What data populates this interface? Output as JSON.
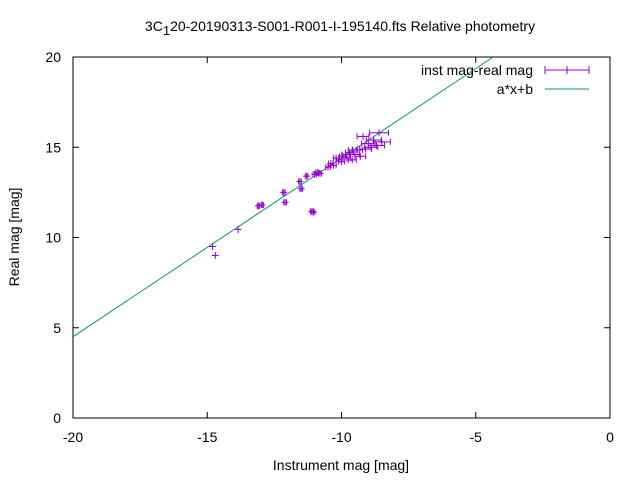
{
  "chart_data": {
    "type": "scatter",
    "title_main": "3C",
    "title_sub": "1",
    "title_rest": "20-20190313-S001-R001-I-195140.fts Relative photometry",
    "xlabel": "Instrument mag [mag]",
    "ylabel": "Real mag [mag]",
    "xlim": [
      -20,
      0
    ],
    "ylim": [
      0,
      20
    ],
    "xticks": [
      -20,
      -15,
      -10,
      -5,
      0
    ],
    "xtick_labels": [
      "-20",
      "-15",
      "-10",
      "-5",
      "0"
    ],
    "yticks": [
      0,
      5,
      10,
      15,
      20
    ],
    "ytick_labels": [
      "0",
      "5",
      "10",
      "15",
      "20"
    ],
    "grid": false,
    "legend_position": "top-right",
    "series": [
      {
        "name": "inst mag-real mag",
        "kind": "points-with-xerror",
        "color": "#9400d3",
        "points": [
          {
            "x": -14.8,
            "y": 9.5,
            "xerr": 0.02
          },
          {
            "x": -14.7,
            "y": 9.0,
            "xerr": 0.02
          },
          {
            "x": -13.85,
            "y": 10.45,
            "xerr": 0.03
          },
          {
            "x": -13.1,
            "y": 11.75,
            "xerr": 0.04
          },
          {
            "x": -12.95,
            "y": 11.8,
            "xerr": 0.04
          },
          {
            "x": -12.15,
            "y": 12.5,
            "xerr": 0.05
          },
          {
            "x": -12.1,
            "y": 11.95,
            "xerr": 0.05
          },
          {
            "x": -11.5,
            "y": 12.7,
            "xerr": 0.05
          },
          {
            "x": -11.55,
            "y": 13.1,
            "xerr": 0.05
          },
          {
            "x": -11.3,
            "y": 13.4,
            "xerr": 0.05
          },
          {
            "x": -11.1,
            "y": 11.45,
            "xerr": 0.06
          },
          {
            "x": -11.05,
            "y": 11.4,
            "xerr": 0.06
          },
          {
            "x": -11.0,
            "y": 13.5,
            "xerr": 0.06
          },
          {
            "x": -10.9,
            "y": 13.6,
            "xerr": 0.06
          },
          {
            "x": -10.8,
            "y": 13.55,
            "xerr": 0.06
          },
          {
            "x": -10.5,
            "y": 13.9,
            "xerr": 0.08
          },
          {
            "x": -10.4,
            "y": 14.1,
            "xerr": 0.08
          },
          {
            "x": -10.3,
            "y": 14.0,
            "xerr": 0.1
          },
          {
            "x": -10.1,
            "y": 14.3,
            "xerr": 0.1
          },
          {
            "x": -10.0,
            "y": 14.2,
            "xerr": 0.12
          },
          {
            "x": -9.95,
            "y": 14.5,
            "xerr": 0.12
          },
          {
            "x": -9.8,
            "y": 14.4,
            "xerr": 0.14
          },
          {
            "x": -9.7,
            "y": 14.7,
            "xerr": 0.15
          },
          {
            "x": -9.6,
            "y": 14.3,
            "xerr": 0.15
          },
          {
            "x": -9.5,
            "y": 14.6,
            "xerr": 0.17
          },
          {
            "x": -9.4,
            "y": 14.85,
            "xerr": 0.18
          },
          {
            "x": -9.3,
            "y": 14.5,
            "xerr": 0.2
          },
          {
            "x": -9.2,
            "y": 15.6,
            "xerr": 0.22
          },
          {
            "x": -9.1,
            "y": 14.9,
            "xerr": 0.22
          },
          {
            "x": -9.0,
            "y": 15.2,
            "xerr": 0.25
          },
          {
            "x": -8.9,
            "y": 15.0,
            "xerr": 0.25
          },
          {
            "x": -8.8,
            "y": 15.4,
            "xerr": 0.28
          },
          {
            "x": -8.7,
            "y": 15.1,
            "xerr": 0.3
          },
          {
            "x": -8.6,
            "y": 15.8,
            "xerr": 0.35
          },
          {
            "x": -8.5,
            "y": 15.3,
            "xerr": 0.32
          },
          {
            "x": -9.6,
            "y": 14.85,
            "xerr": 0.15
          },
          {
            "x": -9.85,
            "y": 14.6,
            "xerr": 0.14
          },
          {
            "x": -10.2,
            "y": 14.4,
            "xerr": 0.1
          }
        ]
      },
      {
        "name": "a*x+b",
        "kind": "line",
        "color": "#009e73",
        "line": [
          {
            "x": -20,
            "y": 4.5
          },
          {
            "x": -4.35,
            "y": 20
          }
        ]
      }
    ]
  }
}
